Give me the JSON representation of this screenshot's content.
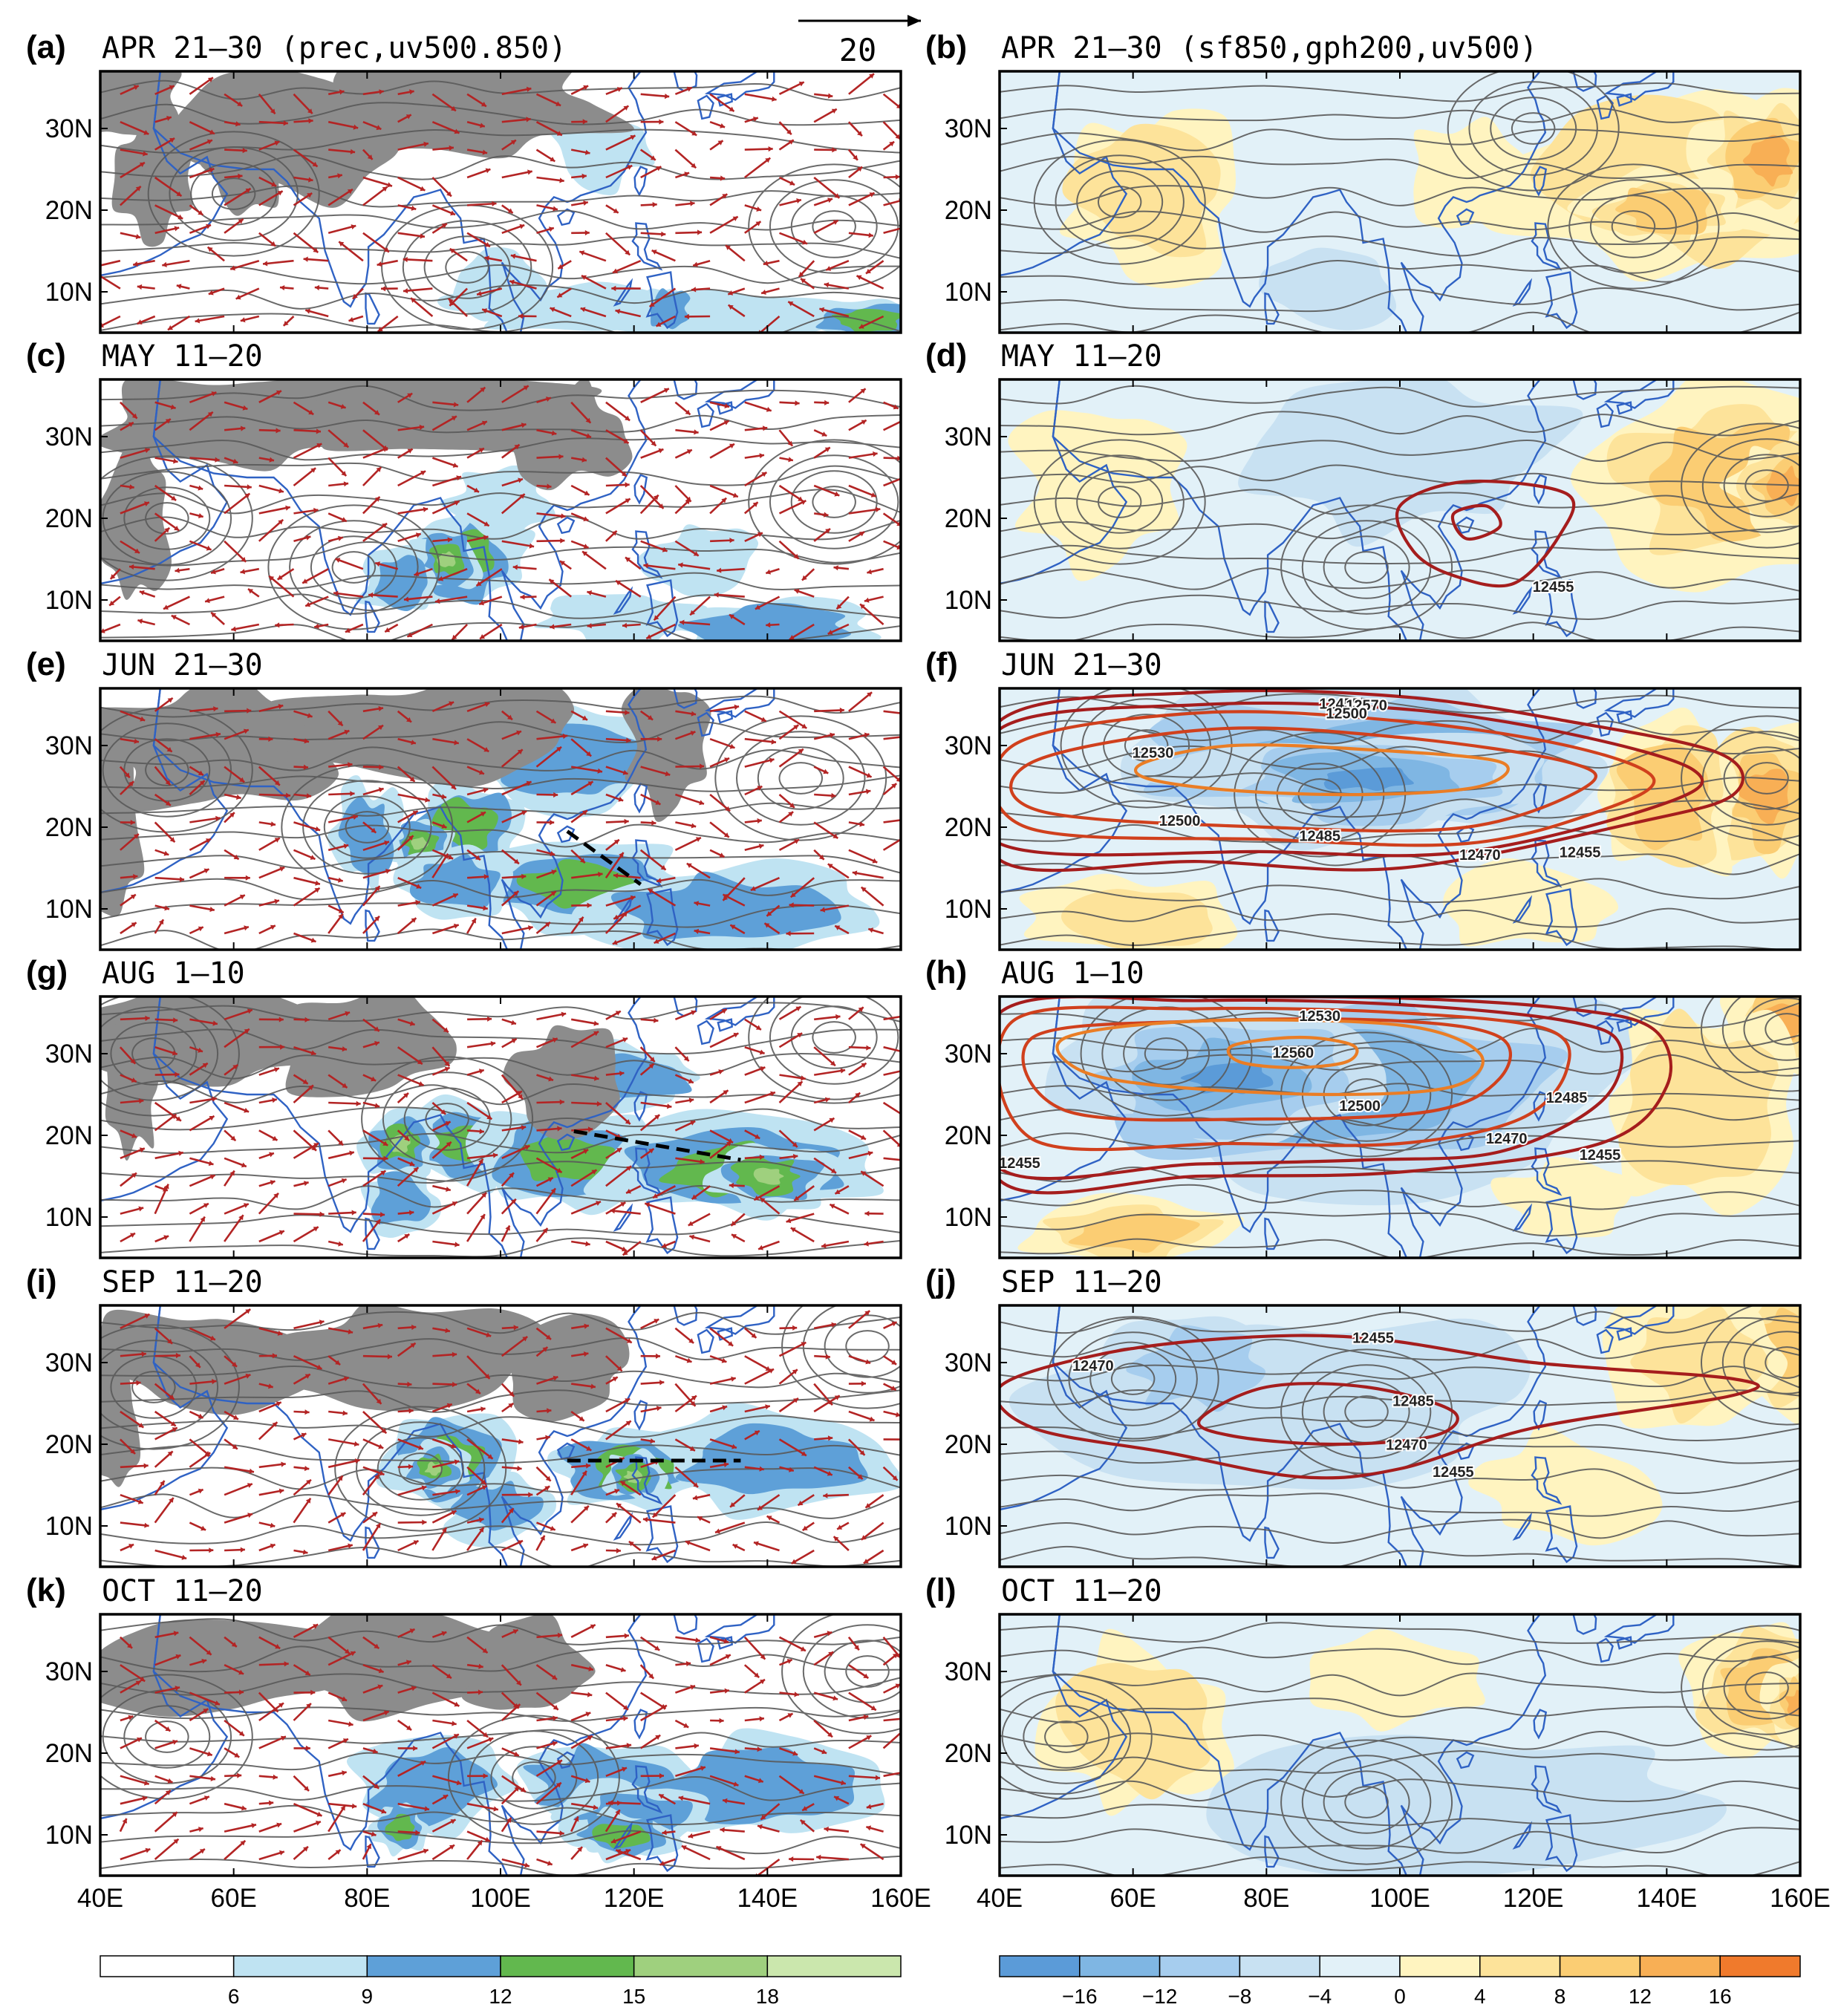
{
  "figure": {
    "vector_key": {
      "label": "20"
    },
    "x_ticks": [
      "40E",
      "60E",
      "80E",
      "100E",
      "120E",
      "140E",
      "160E"
    ],
    "y_ticks": [
      "10N",
      "20N",
      "30N"
    ],
    "lon_range": [
      40,
      160
    ],
    "lat_range": [
      5,
      37
    ],
    "colorbar_left": {
      "labels": [
        "6",
        "9",
        "12",
        "15",
        "18"
      ],
      "colors": [
        "#ffffff",
        "#bfe3f2",
        "#5ea0d8",
        "#62b84e",
        "#9fd07e",
        "#cbe7ad"
      ]
    },
    "colorbar_right": {
      "labels": [
        "−16",
        "−12",
        "−8",
        "−4",
        "0",
        "4",
        "8",
        "12",
        "16"
      ],
      "colors": [
        "#5b9bd8",
        "#7fb6e3",
        "#a6cdee",
        "#c8e1f2",
        "#e2f1f8",
        "#fff4c0",
        "#fde39a",
        "#fbcd73",
        "#f8af55",
        "#f07a2c"
      ]
    },
    "colors": {
      "land_gray": "#8c8c8c",
      "coast": "#2f62c4",
      "streamline": "#5a5a5a",
      "wind_vector": "#b32424",
      "contour_dark": "#a51d1d",
      "contour_mid": "#d0401d",
      "contour_orange": "#ea7d25",
      "trough_line": "#000000"
    }
  },
  "chart_data": [
    {
      "id": "a",
      "panel_label": "(a)",
      "title": "APR  21–30  (prec,uv500.850)",
      "type": "heatmap",
      "fields": [
        "precipitation",
        "850hPa streamlines",
        "500hPa wind vectors"
      ],
      "trough_line": null
    },
    {
      "id": "b",
      "panel_label": "(b)",
      "title": "APR  21–30  (sf850,gph200,uv500)",
      "type": "heatmap",
      "fields": [
        "sf850",
        "gph200",
        "uv500"
      ],
      "contour_labels": []
    },
    {
      "id": "c",
      "panel_label": "(c)",
      "title": "MAY  11–20",
      "type": "heatmap",
      "trough_line": null
    },
    {
      "id": "d",
      "panel_label": "(d)",
      "title": "MAY  11–20",
      "type": "heatmap",
      "contour_labels": [
        {
          "text": "12455",
          "lon": 123,
          "lat": 11
        }
      ]
    },
    {
      "id": "e",
      "panel_label": "(e)",
      "title": "JUN  21–30",
      "type": "heatmap",
      "trough_line": {
        "lon": [
          110,
          121
        ],
        "lat": [
          19.5,
          13
        ]
      }
    },
    {
      "id": "f",
      "panel_label": "(f)",
      "title": "JUN  21–30",
      "type": "heatmap",
      "contour_labels": [
        {
          "text": "12455",
          "lon": 91,
          "lat": 34.5
        },
        {
          "text": "12570",
          "lon": 95,
          "lat": 34.3
        },
        {
          "text": "12500",
          "lon": 92,
          "lat": 33.3
        },
        {
          "text": "12530",
          "lon": 63,
          "lat": 28.5
        },
        {
          "text": "12500",
          "lon": 67,
          "lat": 20.2
        },
        {
          "text": "12485",
          "lon": 88,
          "lat": 18.3
        },
        {
          "text": "12470",
          "lon": 112,
          "lat": 16
        },
        {
          "text": "12455",
          "lon": 127,
          "lat": 16.3
        }
      ]
    },
    {
      "id": "g",
      "panel_label": "(g)",
      "title": "AUG  1–10",
      "type": "heatmap",
      "trough_line": {
        "lon": [
          111,
          136
        ],
        "lat": [
          20.5,
          17
        ]
      }
    },
    {
      "id": "h",
      "panel_label": "(h)",
      "title": "AUG  1–10",
      "type": "heatmap",
      "contour_labels": [
        {
          "text": "12530",
          "lon": 88,
          "lat": 34
        },
        {
          "text": "12560",
          "lon": 84,
          "lat": 29.5
        },
        {
          "text": "12500",
          "lon": 94,
          "lat": 23
        },
        {
          "text": "12485",
          "lon": 125,
          "lat": 24
        },
        {
          "text": "12470",
          "lon": 116,
          "lat": 19
        },
        {
          "text": "12455",
          "lon": 130,
          "lat": 17
        },
        {
          "text": "12455",
          "lon": 43,
          "lat": 16
        }
      ]
    },
    {
      "id": "i",
      "panel_label": "(i)",
      "title": "SEP  11–20",
      "type": "heatmap",
      "trough_line": {
        "lon": [
          110,
          136
        ],
        "lat": [
          18,
          18
        ]
      }
    },
    {
      "id": "j",
      "panel_label": "(j)",
      "title": "SEP  11–20",
      "type": "heatmap",
      "contour_labels": [
        {
          "text": "12455",
          "lon": 96,
          "lat": 32.4
        },
        {
          "text": "12485",
          "lon": 102,
          "lat": 24.7
        },
        {
          "text": "12470",
          "lon": 54,
          "lat": 29
        },
        {
          "text": "12470",
          "lon": 101,
          "lat": 19.3
        },
        {
          "text": "12455",
          "lon": 108,
          "lat": 16
        }
      ]
    },
    {
      "id": "k",
      "panel_label": "(k)",
      "title": "OCT  11–20",
      "type": "heatmap",
      "trough_line": null
    },
    {
      "id": "l",
      "panel_label": "(l)",
      "title": "OCT  11–20",
      "type": "heatmap",
      "contour_labels": []
    }
  ]
}
